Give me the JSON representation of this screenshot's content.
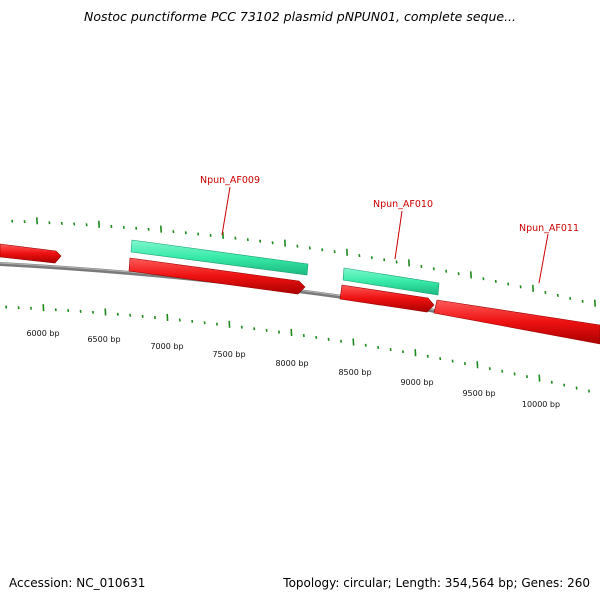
{
  "title": "Nostoc punctiforme PCC 73102 plasmid pNPUN01, complete seque...",
  "footer": {
    "accession": "Accession: NC_010631",
    "summary": "Topology: circular; Length: 354,564 bp; Genes: 260"
  },
  "colors": {
    "forward_feature": "#37eaa8",
    "reverse_feature": "#ee1111",
    "label": "#cc0000",
    "tick": "#1c8a1c",
    "backbone": "#808080"
  },
  "genes": [
    {
      "label": "Npun_AF009"
    },
    {
      "label": "Npun_AF010"
    },
    {
      "label": "Npun_AF011"
    }
  ],
  "scale_labels": [
    "6000 bp",
    "6500 bp",
    "7000 bp",
    "7500 bp",
    "8000 bp",
    "8500 bp",
    "9000 bp",
    "9500 bp",
    "10000 bp"
  ]
}
